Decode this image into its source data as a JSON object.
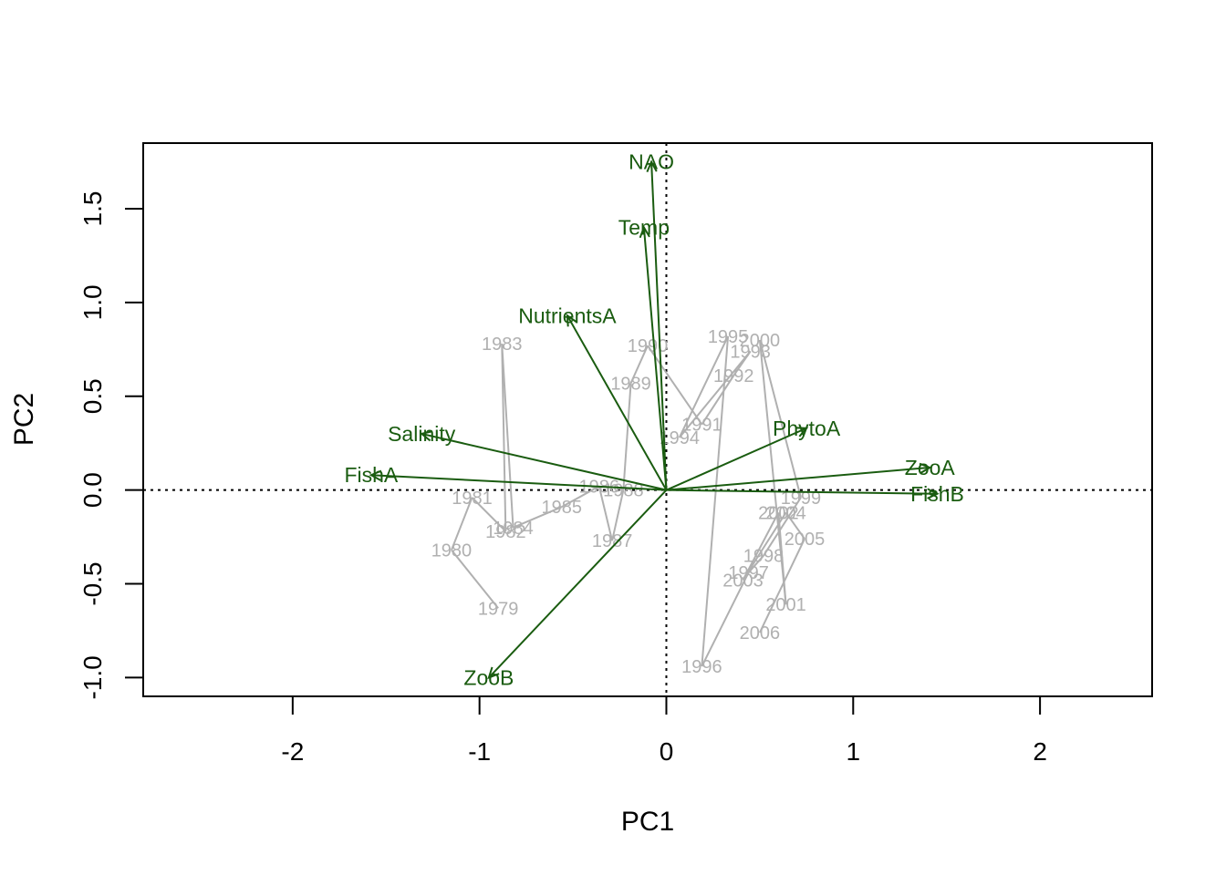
{
  "chart_data": {
    "type": "scatter",
    "subtype": "pca-biplot",
    "title": "",
    "xlabel": "PC1",
    "ylabel": "PC2",
    "xlim": [
      -2.8,
      2.6
    ],
    "ylim": [
      -1.1,
      1.85
    ],
    "x_ticks": [
      -2,
      -1,
      0,
      1,
      2
    ],
    "y_ticks": [
      -1.0,
      -0.5,
      0.0,
      0.5,
      1.0,
      1.5
    ],
    "x_tick_labels": [
      "-2",
      "-1",
      "0",
      "1",
      "2"
    ],
    "y_tick_labels": [
      "-1.0",
      "-0.5",
      "0.0",
      "0.5",
      "1.0",
      "1.5"
    ],
    "reference_lines": {
      "x": 0,
      "y": 0,
      "style": "dotted"
    },
    "colors": {
      "trajectory": "#b0b0b0",
      "loadings": "#1a5c10"
    },
    "trajectory": [
      {
        "label": "1979",
        "x": -0.9,
        "y": -0.63
      },
      {
        "label": "1980",
        "x": -1.15,
        "y": -0.32
      },
      {
        "label": "1981",
        "x": -1.04,
        "y": -0.04
      },
      {
        "label": "1982",
        "x": -0.86,
        "y": -0.22
      },
      {
        "label": "1983",
        "x": -0.88,
        "y": 0.78
      },
      {
        "label": "1984",
        "x": -0.82,
        "y": -0.2
      },
      {
        "label": "1985",
        "x": -0.56,
        "y": -0.09
      },
      {
        "label": "1986",
        "x": -0.36,
        "y": 0.02
      },
      {
        "label": "1987",
        "x": -0.29,
        "y": -0.27
      },
      {
        "label": "1988",
        "x": -0.23,
        "y": 0.0
      },
      {
        "label": "1989",
        "x": -0.19,
        "y": 0.57
      },
      {
        "label": "1990",
        "x": -0.1,
        "y": 0.77
      },
      {
        "label": "1991",
        "x": 0.19,
        "y": 0.35
      },
      {
        "label": "1992",
        "x": 0.36,
        "y": 0.61
      },
      {
        "label": "1993",
        "x": 0.45,
        "y": 0.74
      },
      {
        "label": "1994",
        "x": 0.07,
        "y": 0.28
      },
      {
        "label": "1995",
        "x": 0.33,
        "y": 0.82
      },
      {
        "label": "1996",
        "x": 0.19,
        "y": -0.94
      },
      {
        "label": "1997",
        "x": 0.44,
        "y": -0.44
      },
      {
        "label": "1998",
        "x": 0.52,
        "y": -0.35
      },
      {
        "label": "1999",
        "x": 0.72,
        "y": -0.04
      },
      {
        "label": "2000",
        "x": 0.5,
        "y": 0.8
      },
      {
        "label": "2001",
        "x": 0.64,
        "y": -0.61
      },
      {
        "label": "2002",
        "x": 0.6,
        "y": -0.12
      },
      {
        "label": "2003",
        "x": 0.41,
        "y": -0.48
      },
      {
        "label": "2004",
        "x": 0.64,
        "y": -0.12
      },
      {
        "label": "2005",
        "x": 0.74,
        "y": -0.26
      },
      {
        "label": "2006",
        "x": 0.5,
        "y": -0.76
      }
    ],
    "loadings": [
      {
        "label": "NAO",
        "x": -0.08,
        "y": 1.75
      },
      {
        "label": "Temp",
        "x": -0.12,
        "y": 1.4
      },
      {
        "label": "NutrientsA",
        "x": -0.53,
        "y": 0.93
      },
      {
        "label": "Salinity",
        "x": -1.31,
        "y": 0.3
      },
      {
        "label": "FishA",
        "x": -1.58,
        "y": 0.08
      },
      {
        "label": "ZooB",
        "x": -0.95,
        "y": -1.0
      },
      {
        "label": "PhytoA",
        "x": 0.75,
        "y": 0.33
      },
      {
        "label": "ZooA",
        "x": 1.41,
        "y": 0.12
      },
      {
        "label": "FishB",
        "x": 1.45,
        "y": -0.02
      }
    ]
  }
}
